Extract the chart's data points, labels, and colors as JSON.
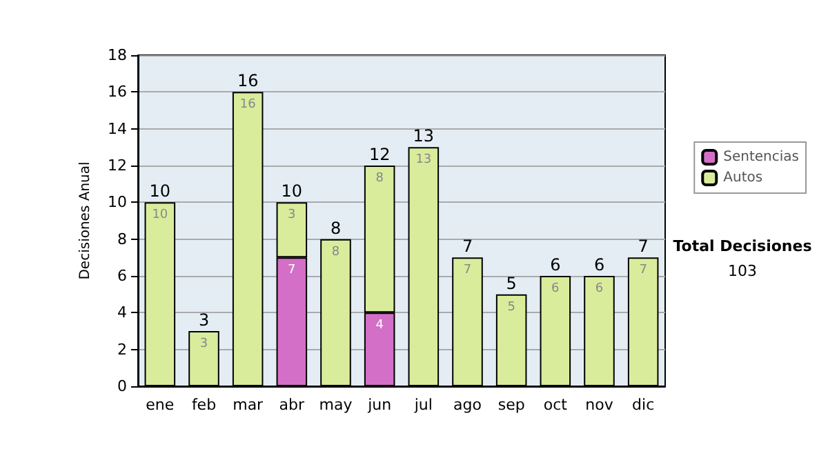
{
  "chart_data": {
    "type": "bar",
    "stacked": true,
    "ylabel": "Decisiones Anual",
    "categories": [
      "ene",
      "feb",
      "mar",
      "abr",
      "may",
      "jun",
      "jul",
      "ago",
      "sep",
      "oct",
      "nov",
      "dic"
    ],
    "series": [
      {
        "name": "Sentencias",
        "color": "#d36fc6",
        "values": [
          null,
          null,
          null,
          7,
          null,
          4,
          null,
          null,
          null,
          null,
          null,
          null
        ]
      },
      {
        "name": "Autos",
        "color": "#d9ec9c",
        "values": [
          10,
          3,
          16,
          3,
          8,
          8,
          13,
          7,
          5,
          6,
          6,
          7
        ]
      }
    ],
    "ylim": [
      0,
      18
    ],
    "yticks": [
      0,
      2,
      4,
      6,
      8,
      10,
      12,
      14,
      16,
      18
    ],
    "grid": "y",
    "legend": "right",
    "data_labels": true,
    "totals": [
      "10",
      "3",
      "16",
      "10",
      "8",
      "12",
      "13",
      "7",
      "5",
      "6",
      "6",
      "7"
    ],
    "annotations": [
      "Total Decisiones",
      "103"
    ]
  }
}
